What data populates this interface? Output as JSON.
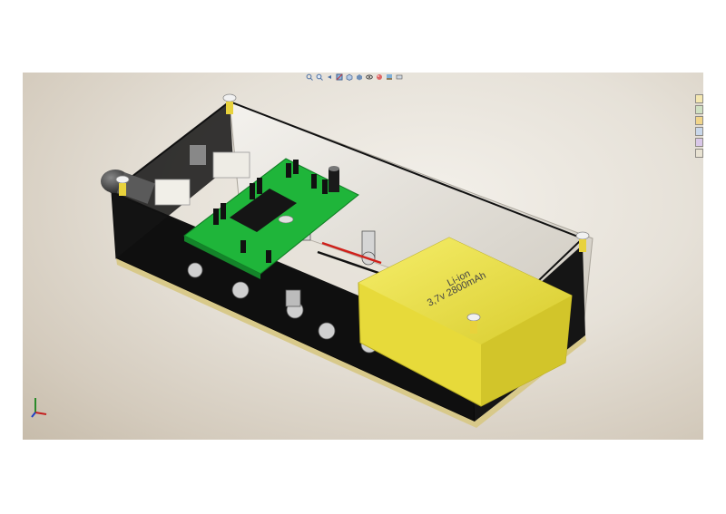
{
  "app": {
    "name": "3D CAD model viewport"
  },
  "tabs": [],
  "view_toolbar": {
    "icons": [
      "zoom-to-fit-icon",
      "zoom-to-area-icon",
      "previous-view-icon",
      "section-view-icon",
      "view-orientation-icon",
      "display-style-icon",
      "hide-show-items-icon",
      "edit-appearance-icon",
      "apply-scene-icon",
      "view-settings-icon"
    ]
  },
  "task_pane": {
    "icons": [
      "resources-icon",
      "design-library-icon",
      "file-explorer-icon",
      "view-palette-icon",
      "appearances-icon",
      "custom-properties-icon"
    ]
  },
  "model": {
    "battery_label_line1": "Li-ion",
    "battery_label_line2": "3,7v 2800mAh"
  },
  "colors": {
    "pcb": "#1fb53a",
    "battery": "#f0e448",
    "enclosure": "#101010"
  }
}
